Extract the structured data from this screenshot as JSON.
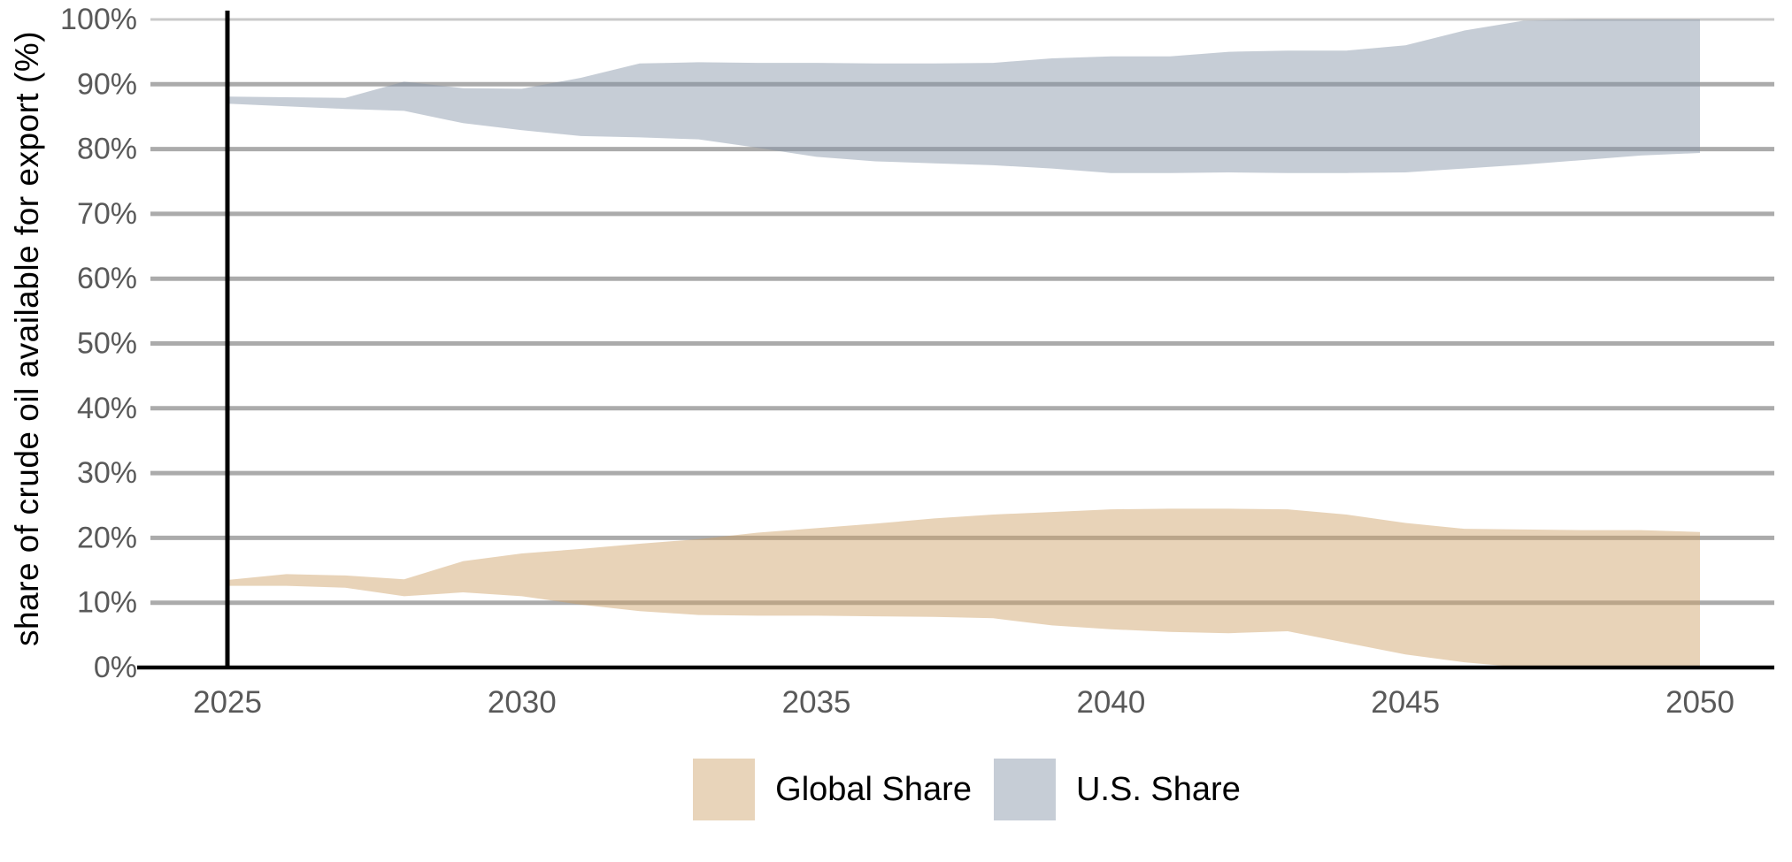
{
  "chart_data": {
    "type": "area",
    "subtype": "band-range",
    "title": "",
    "xlabel": "",
    "ylabel": "share of crude oil available for export (%)",
    "xlim": [
      2025,
      2050
    ],
    "ylim": [
      0,
      100
    ],
    "grid": "horizontal",
    "legend_position": "bottom-center",
    "event_line_x": 2025,
    "x": [
      2025,
      2026,
      2027,
      2028,
      2029,
      2030,
      2031,
      2032,
      2033,
      2034,
      2035,
      2036,
      2037,
      2038,
      2039,
      2040,
      2041,
      2042,
      2043,
      2044,
      2045,
      2046,
      2047,
      2048,
      2049,
      2050
    ],
    "x_ticks": [
      2025,
      2030,
      2035,
      2040,
      2045,
      2050
    ],
    "y_ticks": [
      0,
      10,
      20,
      30,
      40,
      50,
      60,
      70,
      80,
      90,
      100
    ],
    "y_tick_labels": [
      "0%",
      "10%",
      "20%",
      "30%",
      "40%",
      "50%",
      "60%",
      "70%",
      "80%",
      "90%",
      "100%"
    ],
    "grid_color": "#ababab",
    "grid_minor_color": "#c9c9c9",
    "axis_color": "#000000",
    "event_line_color": "#000000",
    "tick_color": "#595959",
    "series": [
      {
        "name": "Global Share",
        "fill": "#e8d4ba",
        "fill_rgba": "rgba(204,160,100,0.46)",
        "low": [
          12.6,
          12.6,
          12.3,
          11.0,
          11.6,
          11.0,
          9.7,
          8.7,
          8.1,
          8.0,
          8.0,
          7.9,
          7.8,
          7.6,
          6.5,
          5.9,
          5.5,
          5.3,
          5.6,
          3.8,
          2.0,
          0.8,
          0,
          0,
          0,
          0
        ],
        "high": [
          13.5,
          14.4,
          14.2,
          13.6,
          16.4,
          17.6,
          18.3,
          19.1,
          19.8,
          20.8,
          21.5,
          22.2,
          23.0,
          23.6,
          24.0,
          24.4,
          24.5,
          24.5,
          24.4,
          23.6,
          22.3,
          21.4,
          21.3,
          21.2,
          21.2,
          20.9
        ]
      },
      {
        "name": "U.S. Share",
        "fill": "#c6cdd6",
        "fill_rgba": "rgba(128,144,164,0.45)",
        "low": [
          87.0,
          86.6,
          86.2,
          85.9,
          84.0,
          82.9,
          82.0,
          81.8,
          81.5,
          80.2,
          78.8,
          78.1,
          77.8,
          77.5,
          77.0,
          76.3,
          76.3,
          76.4,
          76.3,
          76.3,
          76.4,
          77.0,
          77.6,
          78.3,
          79.0,
          79.4
        ],
        "high": [
          88.1,
          88.0,
          87.9,
          90.4,
          89.4,
          89.3,
          91.0,
          93.2,
          93.4,
          93.3,
          93.3,
          93.2,
          93.2,
          93.3,
          94.0,
          94.3,
          94.3,
          95.0,
          95.2,
          95.2,
          96.0,
          98.3,
          99.8,
          100,
          100,
          100
        ]
      }
    ]
  },
  "legend": {
    "items": [
      {
        "label": "Global Share",
        "color": "#e8d4ba"
      },
      {
        "label": "U.S. Share",
        "color": "#c6cdd6"
      }
    ]
  }
}
